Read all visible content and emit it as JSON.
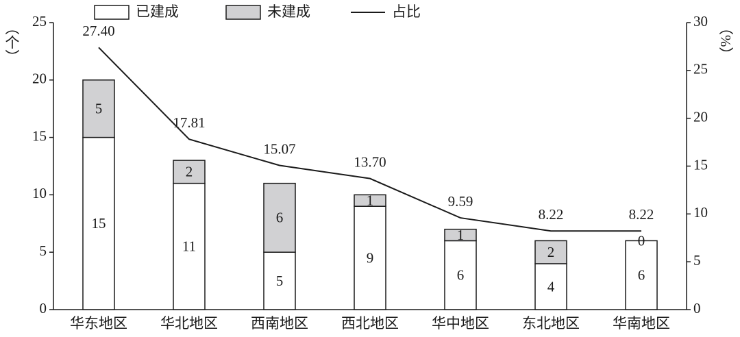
{
  "chart_data": {
    "type": "bar",
    "categories": [
      "华东地区",
      "华北地区",
      "西南地区",
      "西北地区",
      "华中地区",
      "东北地区",
      "华南地区"
    ],
    "y_label": "（个）",
    "y2_label": "（%）",
    "ylim": [
      0,
      25
    ],
    "yticks": [
      0,
      5,
      10,
      15,
      20,
      25
    ],
    "y2lim": [
      0,
      30
    ],
    "y2ticks": [
      0,
      5,
      10,
      15,
      20,
      25,
      30
    ],
    "series": [
      {
        "name": "已建成",
        "type": "bar",
        "color": "#ffffff",
        "values": [
          15,
          11,
          5,
          9,
          6,
          4,
          6
        ]
      },
      {
        "name": "未建成",
        "type": "bar",
        "color": "#d1d1d3",
        "values": [
          5,
          2,
          6,
          1,
          1,
          2,
          0
        ]
      },
      {
        "name": "占比",
        "type": "line",
        "axis": "y2",
        "color": "#1a1a1a",
        "values": [
          27.4,
          17.81,
          15.07,
          13.7,
          9.59,
          8.22,
          8.22
        ],
        "value_labels": [
          "27.40",
          "17.81",
          "15.07",
          "13.70",
          "9.59",
          "8.22",
          "8.22"
        ]
      }
    ]
  }
}
